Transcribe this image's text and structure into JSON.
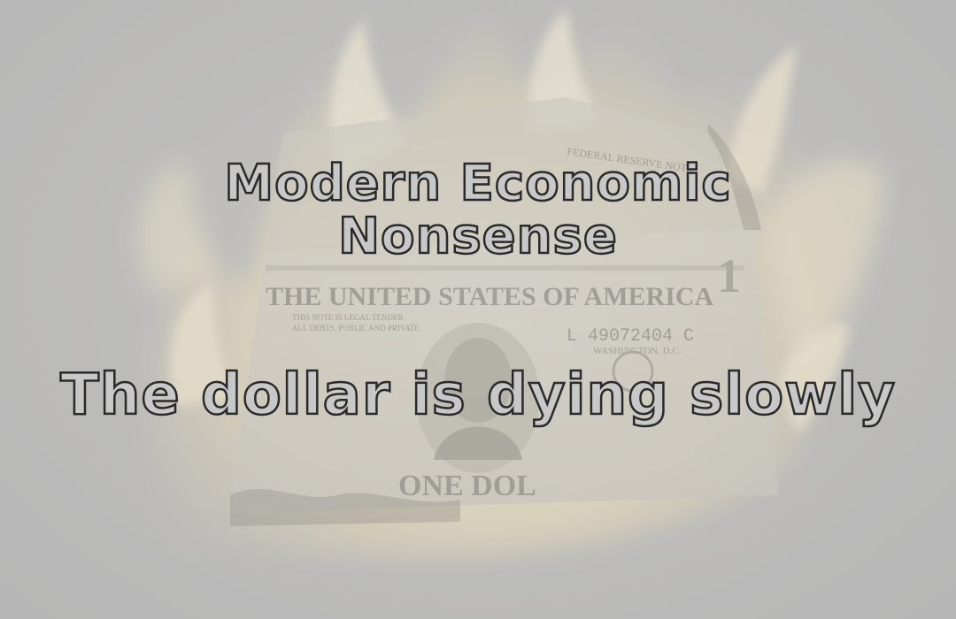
{
  "title": {
    "line1": "Modern Economic",
    "line2": "Nonsense"
  },
  "subtitle": "The dollar is dying slowly",
  "banknote": {
    "header": "THE UNITED STATES OF AMERICA",
    "tender_line1": "THIS NOTE IS LEGAL TENDER",
    "tender_line2": "ALL DEBTS, PUBLIC AND PRIVATE",
    "serial": "L 49072404 C",
    "city": "WASHINGTON, D.C.",
    "denomination": "ONE DOL",
    "corner_value": "1",
    "top_text": "FEDERAL RESERVE NOTE"
  },
  "colors": {
    "background": "#b3b3b3",
    "flame": "#fff3c8",
    "text_fill": "#c8c8c8",
    "text_outline": "#2a2a2a"
  }
}
